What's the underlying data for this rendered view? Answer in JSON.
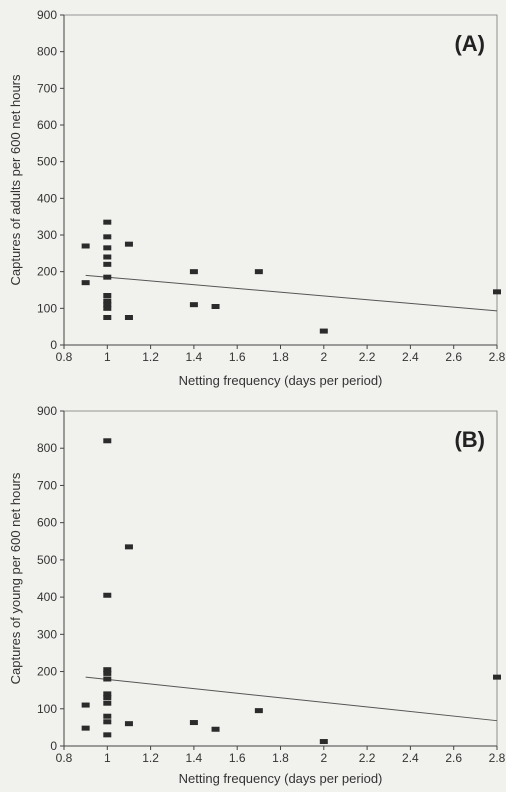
{
  "chart_data": [
    {
      "type": "scatter",
      "panel_label": "(A)",
      "xlabel": "Netting frequency (days per period)",
      "ylabel": "Captures of adults per 600 net hours",
      "xlim": [
        0.8,
        2.8
      ],
      "ylim": [
        0,
        900
      ],
      "xticks": [
        "0.8",
        "1",
        "1.2",
        "1.4",
        "1.6",
        "1.8",
        "2",
        "2.2",
        "2.4",
        "2.6",
        "2.8"
      ],
      "yticks": [
        "0",
        "100",
        "200",
        "300",
        "400",
        "500",
        "600",
        "700",
        "800",
        "900"
      ],
      "grid": false,
      "points": [
        {
          "x": 0.9,
          "y": 270
        },
        {
          "x": 0.9,
          "y": 170
        },
        {
          "x": 1.0,
          "y": 335
        },
        {
          "x": 1.0,
          "y": 295
        },
        {
          "x": 1.0,
          "y": 265
        },
        {
          "x": 1.0,
          "y": 240
        },
        {
          "x": 1.0,
          "y": 220
        },
        {
          "x": 1.0,
          "y": 185
        },
        {
          "x": 1.0,
          "y": 135
        },
        {
          "x": 1.0,
          "y": 120
        },
        {
          "x": 1.0,
          "y": 110
        },
        {
          "x": 1.0,
          "y": 100
        },
        {
          "x": 1.0,
          "y": 75
        },
        {
          "x": 1.1,
          "y": 275
        },
        {
          "x": 1.1,
          "y": 75
        },
        {
          "x": 1.4,
          "y": 200
        },
        {
          "x": 1.4,
          "y": 110
        },
        {
          "x": 1.5,
          "y": 105
        },
        {
          "x": 1.7,
          "y": 200
        },
        {
          "x": 2.0,
          "y": 38
        },
        {
          "x": 2.8,
          "y": 145
        }
      ],
      "trendline": {
        "x": [
          0.9,
          2.8
        ],
        "y": [
          190,
          93
        ]
      }
    },
    {
      "type": "scatter",
      "panel_label": "(B)",
      "xlabel": "Netting frequency (days per period)",
      "ylabel": "Captures of young per 600 net hours",
      "xlim": [
        0.8,
        2.8
      ],
      "ylim": [
        0,
        900
      ],
      "xticks": [
        "0.8",
        "1",
        "1.2",
        "1.4",
        "1.6",
        "1.8",
        "2",
        "2.2",
        "2.4",
        "2.6",
        "2.8"
      ],
      "yticks": [
        "0",
        "100",
        "200",
        "300",
        "400",
        "500",
        "600",
        "700",
        "800",
        "900"
      ],
      "grid": false,
      "points": [
        {
          "x": 0.9,
          "y": 110
        },
        {
          "x": 0.9,
          "y": 48
        },
        {
          "x": 1.0,
          "y": 820
        },
        {
          "x": 1.0,
          "y": 405
        },
        {
          "x": 1.0,
          "y": 205
        },
        {
          "x": 1.0,
          "y": 195
        },
        {
          "x": 1.0,
          "y": 180
        },
        {
          "x": 1.0,
          "y": 140
        },
        {
          "x": 1.0,
          "y": 130
        },
        {
          "x": 1.0,
          "y": 115
        },
        {
          "x": 1.0,
          "y": 80
        },
        {
          "x": 1.0,
          "y": 65
        },
        {
          "x": 1.0,
          "y": 30
        },
        {
          "x": 1.1,
          "y": 535
        },
        {
          "x": 1.1,
          "y": 60
        },
        {
          "x": 1.4,
          "y": 63
        },
        {
          "x": 1.5,
          "y": 45
        },
        {
          "x": 1.7,
          "y": 95
        },
        {
          "x": 2.0,
          "y": 12
        },
        {
          "x": 2.8,
          "y": 185
        }
      ],
      "trendline": {
        "x": [
          0.9,
          2.8
        ],
        "y": [
          185,
          68
        ]
      }
    }
  ]
}
